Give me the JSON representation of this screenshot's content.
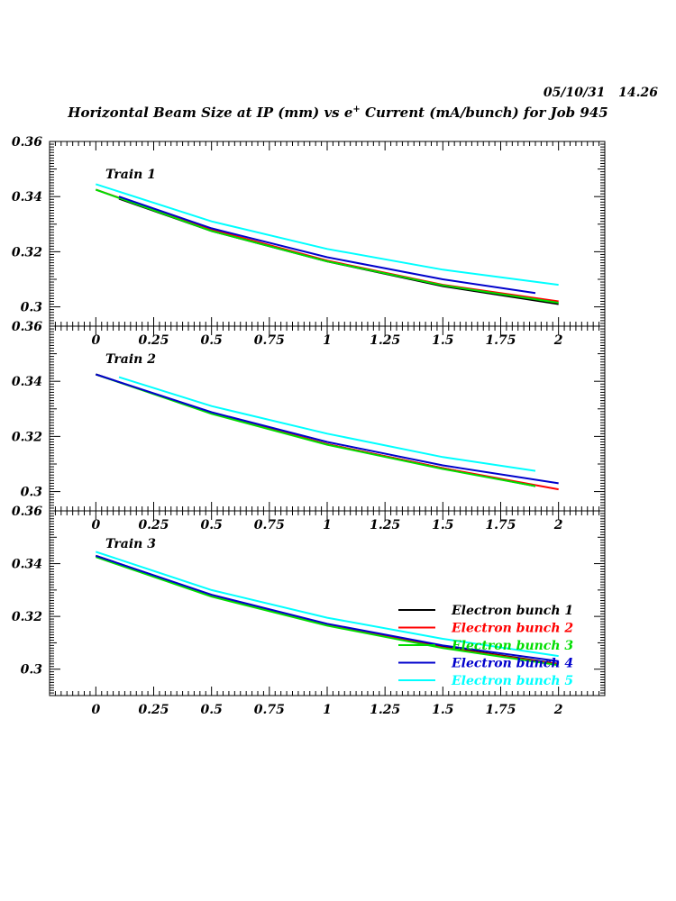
{
  "header": {
    "timestamp": "05/10/31   14.26",
    "title_pre": "Horizontal Beam Size at IP (mm) vs e",
    "title_sup": "+",
    "title_post": " Current (mA/bunch) for Job 945"
  },
  "colors": {
    "bunch1": "#000000",
    "bunch2": "#ff0000",
    "bunch3": "#00dd00",
    "bunch4": "#0000cc",
    "bunch5": "#00ffff"
  },
  "chart_data": [
    {
      "type": "line",
      "label": "Train 1",
      "xlim": [
        -0.2,
        2.2
      ],
      "ylim": [
        0.293,
        0.36
      ],
      "xticks": [
        "0",
        "0.25",
        "0.5",
        "0.75",
        "1",
        "1.25",
        "1.5",
        "1.75",
        "2"
      ],
      "yticks": [
        "0.3",
        "0.32",
        "0.34",
        "0.36"
      ],
      "series": [
        {
          "name": "Electron bunch 1",
          "x": [
            0.1,
            0.5,
            1.0,
            1.5,
            2.0
          ],
          "y": [
            0.3392,
            0.3275,
            0.3165,
            0.3075,
            0.301
          ]
        },
        {
          "name": "Electron bunch 2",
          "x": [
            0.0,
            0.5,
            1.0,
            1.5,
            2.0
          ],
          "y": [
            0.3425,
            0.328,
            0.3168,
            0.308,
            0.302
          ]
        },
        {
          "name": "Electron bunch 3",
          "x": [
            0.0,
            0.5,
            1.0,
            1.5,
            2.0
          ],
          "y": [
            0.3425,
            0.3275,
            0.3165,
            0.3078,
            0.3015
          ]
        },
        {
          "name": "Electron bunch 4",
          "x": [
            0.1,
            0.5,
            1.0,
            1.5,
            1.9
          ],
          "y": [
            0.34,
            0.3285,
            0.318,
            0.31,
            0.305
          ]
        },
        {
          "name": "Electron bunch 5",
          "x": [
            0.0,
            0.5,
            1.0,
            1.5,
            2.0
          ],
          "y": [
            0.3445,
            0.331,
            0.321,
            0.3135,
            0.308
          ]
        }
      ]
    },
    {
      "type": "line",
      "label": "Train 2",
      "xlim": [
        -0.2,
        2.2
      ],
      "ylim": [
        0.293,
        0.36
      ],
      "xticks": [
        "0",
        "0.25",
        "0.5",
        "0.75",
        "1",
        "1.25",
        "1.5",
        "1.75",
        "2"
      ],
      "yticks": [
        "0.3",
        "0.32",
        "0.34",
        "0.36"
      ],
      "series": [
        {
          "name": "Electron bunch 1",
          "x": [
            0.0,
            0.5,
            1.0,
            1.5,
            1.9
          ],
          "y": [
            0.3425,
            0.3285,
            0.3172,
            0.3085,
            0.302
          ]
        },
        {
          "name": "Electron bunch 2",
          "x": [
            0.0,
            0.5,
            1.0,
            1.5,
            2.0
          ],
          "y": [
            0.3425,
            0.3285,
            0.3172,
            0.3085,
            0.3008
          ]
        },
        {
          "name": "Electron bunch 3",
          "x": [
            0.0,
            0.5,
            1.0,
            1.5,
            1.9
          ],
          "y": [
            0.3425,
            0.3282,
            0.317,
            0.3082,
            0.302
          ]
        },
        {
          "name": "Electron bunch 4",
          "x": [
            0.0,
            0.5,
            1.0,
            1.5,
            2.0
          ],
          "y": [
            0.3425,
            0.3288,
            0.318,
            0.3095,
            0.303
          ]
        },
        {
          "name": "Electron bunch 5",
          "x": [
            0.1,
            0.5,
            1.0,
            1.5,
            1.9
          ],
          "y": [
            0.3415,
            0.331,
            0.321,
            0.3125,
            0.3075
          ]
        }
      ]
    },
    {
      "type": "line",
      "label": "Train 3",
      "xlim": [
        -0.2,
        2.2
      ],
      "ylim": [
        0.29,
        0.36
      ],
      "xticks": [
        "0",
        "0.25",
        "0.5",
        "0.75",
        "1",
        "1.25",
        "1.5",
        "1.75",
        "2"
      ],
      "yticks": [
        "0.3",
        "0.32",
        "0.34",
        "0.36"
      ],
      "legend": "bottom-right",
      "series": [
        {
          "name": "Electron bunch 1",
          "x": [
            0.0,
            0.5,
            1.0,
            1.5,
            2.0
          ],
          "y": [
            0.343,
            0.328,
            0.317,
            0.3085,
            0.302
          ]
        },
        {
          "name": "Electron bunch 2",
          "x": [
            0.0,
            0.5,
            1.0,
            1.5,
            2.0
          ],
          "y": [
            0.343,
            0.328,
            0.3168,
            0.3082,
            0.3018
          ]
        },
        {
          "name": "Electron bunch 3",
          "x": [
            0.0,
            0.5,
            1.0,
            1.5,
            2.0
          ],
          "y": [
            0.3425,
            0.3275,
            0.3165,
            0.308,
            0.3015
          ]
        },
        {
          "name": "Electron bunch 4",
          "x": [
            0.0,
            0.5,
            1.0,
            1.5,
            2.0
          ],
          "y": [
            0.343,
            0.3282,
            0.3172,
            0.309,
            0.303
          ]
        },
        {
          "name": "Electron bunch 5",
          "x": [
            0.0,
            0.5,
            1.0,
            1.5,
            2.0
          ],
          "y": [
            0.3445,
            0.33,
            0.3195,
            0.3115,
            0.305
          ]
        }
      ]
    }
  ]
}
